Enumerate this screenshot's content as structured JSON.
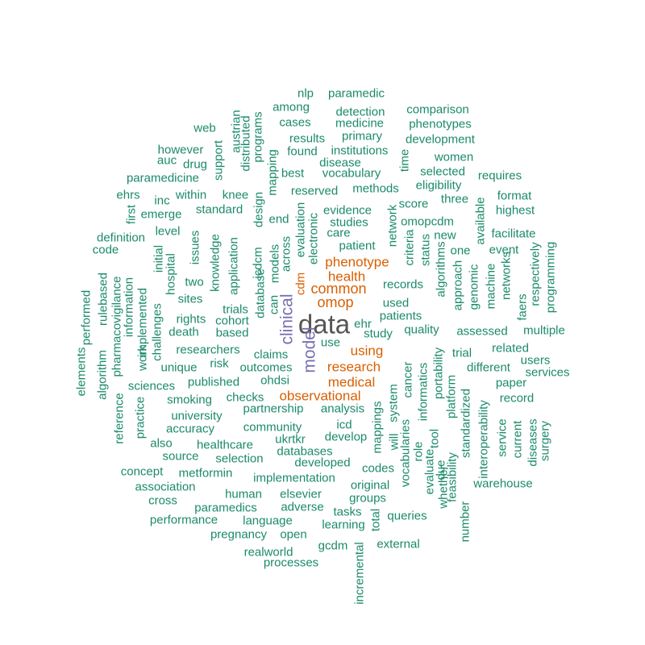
{
  "palette": {
    "teal": "#1b8a6b",
    "orange": "#d95f02",
    "purple": "#7570b3",
    "gray": "#555555"
  },
  "words": [
    {
      "text": "data",
      "color": "gray"
    },
    {
      "text": "clinical",
      "color": "purple"
    },
    {
      "text": "model",
      "color": "purple"
    },
    {
      "text": "omop",
      "color": "orange"
    },
    {
      "text": "common",
      "color": "orange"
    },
    {
      "text": "health",
      "color": "orange"
    },
    {
      "text": "phenotype",
      "color": "orange"
    },
    {
      "text": "research",
      "color": "orange"
    },
    {
      "text": "medical",
      "color": "orange"
    },
    {
      "text": "observational",
      "color": "orange"
    },
    {
      "text": "using",
      "color": "orange"
    },
    {
      "text": "cdm",
      "color": "orange"
    },
    {
      "text": "nlp",
      "color": "teal"
    },
    {
      "text": "paramedic",
      "color": "teal"
    },
    {
      "text": "among",
      "color": "teal"
    },
    {
      "text": "detection",
      "color": "teal"
    },
    {
      "text": "comparison",
      "color": "teal"
    },
    {
      "text": "cases",
      "color": "teal"
    },
    {
      "text": "medicine",
      "color": "teal"
    },
    {
      "text": "phenotypes",
      "color": "teal"
    },
    {
      "text": "web",
      "color": "teal"
    },
    {
      "text": "results",
      "color": "teal"
    },
    {
      "text": "primary",
      "color": "teal"
    },
    {
      "text": "development",
      "color": "teal"
    },
    {
      "text": "however",
      "color": "teal"
    },
    {
      "text": "found",
      "color": "teal"
    },
    {
      "text": "institutions",
      "color": "teal"
    },
    {
      "text": "auc",
      "color": "teal"
    },
    {
      "text": "drug",
      "color": "teal"
    },
    {
      "text": "disease",
      "color": "teal"
    },
    {
      "text": "women",
      "color": "teal"
    },
    {
      "text": "best",
      "color": "teal"
    },
    {
      "text": "vocabulary",
      "color": "teal"
    },
    {
      "text": "selected",
      "color": "teal"
    },
    {
      "text": "paramedicine",
      "color": "teal"
    },
    {
      "text": "requires",
      "color": "teal"
    },
    {
      "text": "eligibility",
      "color": "teal"
    },
    {
      "text": "methods",
      "color": "teal"
    },
    {
      "text": "reserved",
      "color": "teal"
    },
    {
      "text": "ehrs",
      "color": "teal"
    },
    {
      "text": "within",
      "color": "teal"
    },
    {
      "text": "knee",
      "color": "teal"
    },
    {
      "text": "inc",
      "color": "teal"
    },
    {
      "text": "score",
      "color": "teal"
    },
    {
      "text": "three",
      "color": "teal"
    },
    {
      "text": "format",
      "color": "teal"
    },
    {
      "text": "standard",
      "color": "teal"
    },
    {
      "text": "evidence",
      "color": "teal"
    },
    {
      "text": "emerge",
      "color": "teal"
    },
    {
      "text": "highest",
      "color": "teal"
    },
    {
      "text": "end",
      "color": "teal"
    },
    {
      "text": "studies",
      "color": "teal"
    },
    {
      "text": "omopcdm",
      "color": "teal"
    },
    {
      "text": "level",
      "color": "teal"
    },
    {
      "text": "care",
      "color": "teal"
    },
    {
      "text": "new",
      "color": "teal"
    },
    {
      "text": "facilitate",
      "color": "teal"
    },
    {
      "text": "definition",
      "color": "teal"
    },
    {
      "text": "patient",
      "color": "teal"
    },
    {
      "text": "code",
      "color": "teal"
    },
    {
      "text": "one",
      "color": "teal"
    },
    {
      "text": "event",
      "color": "teal"
    },
    {
      "text": "records",
      "color": "teal"
    },
    {
      "text": "two",
      "color": "teal"
    },
    {
      "text": "sites",
      "color": "teal"
    },
    {
      "text": "used",
      "color": "teal"
    },
    {
      "text": "trials",
      "color": "teal"
    },
    {
      "text": "patients",
      "color": "teal"
    },
    {
      "text": "rights",
      "color": "teal"
    },
    {
      "text": "cohort",
      "color": "teal"
    },
    {
      "text": "ehr",
      "color": "teal"
    },
    {
      "text": "quality",
      "color": "teal"
    },
    {
      "text": "death",
      "color": "teal"
    },
    {
      "text": "based",
      "color": "teal"
    },
    {
      "text": "study",
      "color": "teal"
    },
    {
      "text": "assessed",
      "color": "teal"
    },
    {
      "text": "multiple",
      "color": "teal"
    },
    {
      "text": "use",
      "color": "teal"
    },
    {
      "text": "related",
      "color": "teal"
    },
    {
      "text": "researchers",
      "color": "teal"
    },
    {
      "text": "claims",
      "color": "teal"
    },
    {
      "text": "trial",
      "color": "teal"
    },
    {
      "text": "users",
      "color": "teal"
    },
    {
      "text": "risk",
      "color": "teal"
    },
    {
      "text": "unique",
      "color": "teal"
    },
    {
      "text": "outcomes",
      "color": "teal"
    },
    {
      "text": "different",
      "color": "teal"
    },
    {
      "text": "services",
      "color": "teal"
    },
    {
      "text": "ohdsi",
      "color": "teal"
    },
    {
      "text": "paper",
      "color": "teal"
    },
    {
      "text": "sciences",
      "color": "teal"
    },
    {
      "text": "published",
      "color": "teal"
    },
    {
      "text": "record",
      "color": "teal"
    },
    {
      "text": "checks",
      "color": "teal"
    },
    {
      "text": "smoking",
      "color": "teal"
    },
    {
      "text": "partnership",
      "color": "teal"
    },
    {
      "text": "analysis",
      "color": "teal"
    },
    {
      "text": "university",
      "color": "teal"
    },
    {
      "text": "accuracy",
      "color": "teal"
    },
    {
      "text": "community",
      "color": "teal"
    },
    {
      "text": "icd",
      "color": "teal"
    },
    {
      "text": "develop",
      "color": "teal"
    },
    {
      "text": "ukrtkr",
      "color": "teal"
    },
    {
      "text": "also",
      "color": "teal"
    },
    {
      "text": "healthcare",
      "color": "teal"
    },
    {
      "text": "databases",
      "color": "teal"
    },
    {
      "text": "source",
      "color": "teal"
    },
    {
      "text": "selection",
      "color": "teal"
    },
    {
      "text": "developed",
      "color": "teal"
    },
    {
      "text": "concept",
      "color": "teal"
    },
    {
      "text": "metformin",
      "color": "teal"
    },
    {
      "text": "codes",
      "color": "teal"
    },
    {
      "text": "implementation",
      "color": "teal"
    },
    {
      "text": "association",
      "color": "teal"
    },
    {
      "text": "original",
      "color": "teal"
    },
    {
      "text": "warehouse",
      "color": "teal"
    },
    {
      "text": "human",
      "color": "teal"
    },
    {
      "text": "elsevier",
      "color": "teal"
    },
    {
      "text": "groups",
      "color": "teal"
    },
    {
      "text": "cross",
      "color": "teal"
    },
    {
      "text": "paramedics",
      "color": "teal"
    },
    {
      "text": "adverse",
      "color": "teal"
    },
    {
      "text": "tasks",
      "color": "teal"
    },
    {
      "text": "queries",
      "color": "teal"
    },
    {
      "text": "performance",
      "color": "teal"
    },
    {
      "text": "language",
      "color": "teal"
    },
    {
      "text": "learning",
      "color": "teal"
    },
    {
      "text": "pregnancy",
      "color": "teal"
    },
    {
      "text": "open",
      "color": "teal"
    },
    {
      "text": "external",
      "color": "teal"
    },
    {
      "text": "gcdm",
      "color": "teal"
    },
    {
      "text": "realworld",
      "color": "teal"
    },
    {
      "text": "processes",
      "color": "teal"
    },
    {
      "text": "austrian",
      "color": "teal"
    },
    {
      "text": "distributed",
      "color": "teal"
    },
    {
      "text": "programs",
      "color": "teal"
    },
    {
      "text": "support",
      "color": "teal"
    },
    {
      "text": "mapping",
      "color": "teal"
    },
    {
      "text": "time",
      "color": "teal"
    },
    {
      "text": "first",
      "color": "teal"
    },
    {
      "text": "design",
      "color": "teal"
    },
    {
      "text": "evaluation",
      "color": "teal"
    },
    {
      "text": "electronic",
      "color": "teal"
    },
    {
      "text": "network",
      "color": "teal"
    },
    {
      "text": "available",
      "color": "teal"
    },
    {
      "text": "issues",
      "color": "teal"
    },
    {
      "text": "knowledge",
      "color": "teal"
    },
    {
      "text": "application",
      "color": "teal"
    },
    {
      "text": "icdcm",
      "color": "teal"
    },
    {
      "text": "models",
      "color": "teal"
    },
    {
      "text": "across",
      "color": "teal"
    },
    {
      "text": "criteria",
      "color": "teal"
    },
    {
      "text": "status",
      "color": "teal"
    },
    {
      "text": "algorithms",
      "color": "teal"
    },
    {
      "text": "approach",
      "color": "teal"
    },
    {
      "text": "genomic",
      "color": "teal"
    },
    {
      "text": "machine",
      "color": "teal"
    },
    {
      "text": "networks",
      "color": "teal"
    },
    {
      "text": "respectively",
      "color": "teal"
    },
    {
      "text": "programming",
      "color": "teal"
    },
    {
      "text": "faers",
      "color": "teal"
    },
    {
      "text": "initial",
      "color": "teal"
    },
    {
      "text": "hospital",
      "color": "teal"
    },
    {
      "text": "pharmacovigilance",
      "color": "teal"
    },
    {
      "text": "rulebased",
      "color": "teal"
    },
    {
      "text": "information",
      "color": "teal"
    },
    {
      "text": "implemented",
      "color": "teal"
    },
    {
      "text": "performed",
      "color": "teal"
    },
    {
      "text": "challenges",
      "color": "teal"
    },
    {
      "text": "work",
      "color": "teal"
    },
    {
      "text": "elements",
      "color": "teal"
    },
    {
      "text": "algorithm",
      "color": "teal"
    },
    {
      "text": "reference",
      "color": "teal"
    },
    {
      "text": "practice",
      "color": "teal"
    },
    {
      "text": "database",
      "color": "teal"
    },
    {
      "text": "can",
      "color": "teal"
    },
    {
      "text": "system",
      "color": "teal"
    },
    {
      "text": "cancer",
      "color": "teal"
    },
    {
      "text": "informatics",
      "color": "teal"
    },
    {
      "text": "portability",
      "color": "teal"
    },
    {
      "text": "platform",
      "color": "teal"
    },
    {
      "text": "standardized",
      "color": "teal"
    },
    {
      "text": "interoperability",
      "color": "teal"
    },
    {
      "text": "service",
      "color": "teal"
    },
    {
      "text": "current",
      "color": "teal"
    },
    {
      "text": "diseases",
      "color": "teal"
    },
    {
      "text": "surgery",
      "color": "teal"
    },
    {
      "text": "mappings",
      "color": "teal"
    },
    {
      "text": "will",
      "color": "teal"
    },
    {
      "text": "vocabularies",
      "color": "teal"
    },
    {
      "text": "role",
      "color": "teal"
    },
    {
      "text": "tool",
      "color": "teal"
    },
    {
      "text": "evaluate",
      "color": "teal"
    },
    {
      "text": "due",
      "color": "teal"
    },
    {
      "text": "whether",
      "color": "teal"
    },
    {
      "text": "feasibility",
      "color": "teal"
    },
    {
      "text": "number",
      "color": "teal"
    },
    {
      "text": "total",
      "color": "teal"
    },
    {
      "text": "incremental",
      "color": "teal"
    }
  ]
}
